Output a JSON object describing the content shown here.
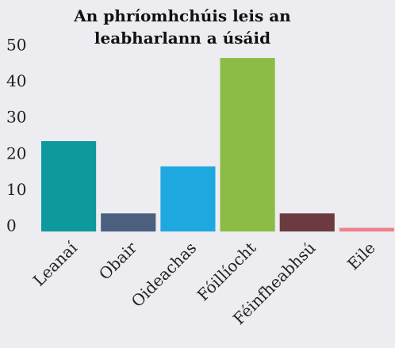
{
  "chart_data": {
    "type": "bar",
    "title": "An phríomhchúis leis an leabharlann a úsáid",
    "categories": [
      "Leanaí",
      "Obair",
      "Oideachas",
      "Fóillíocht",
      "Féinfheabhsú",
      "Eile"
    ],
    "values": [
      25,
      5,
      18,
      48,
      5,
      1
    ],
    "colors": [
      "#0e9a9c",
      "#4b5f7f",
      "#1fa8df",
      "#8cbc45",
      "#6c3b40",
      "#f07f8a"
    ],
    "ylim": [
      0,
      50
    ],
    "yticks": [
      0,
      10,
      20,
      30,
      40,
      50
    ],
    "grid": false
  }
}
